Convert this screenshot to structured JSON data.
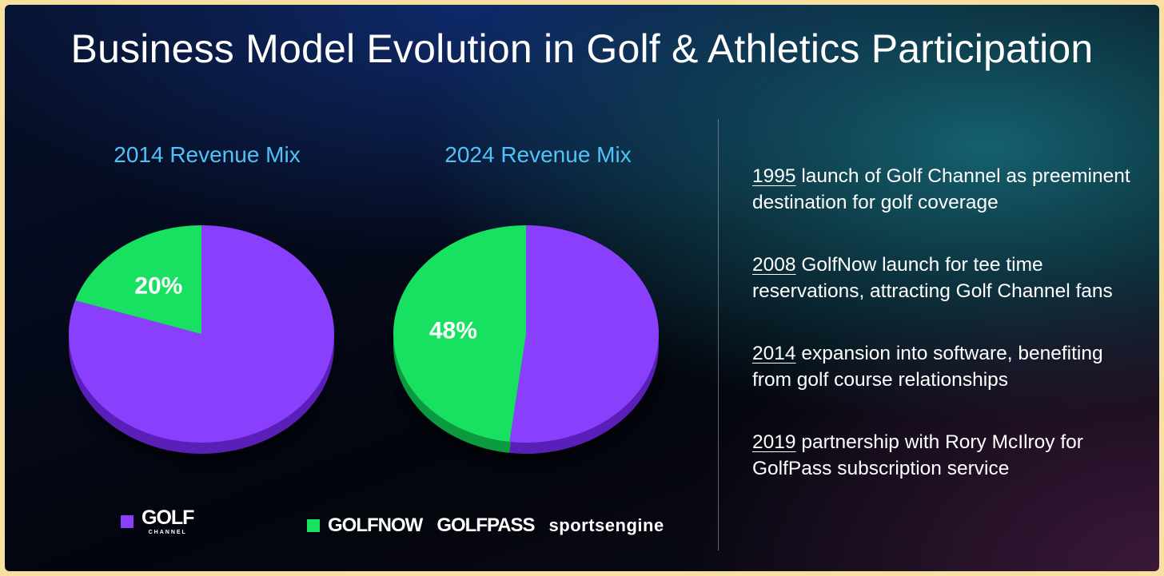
{
  "title": "Business Model Evolution in Golf & Athletics Participation",
  "chart_data": [
    {
      "type": "pie",
      "title": "2014 Revenue Mix",
      "series": [
        {
          "name": "Golf Channel",
          "value": 80
        },
        {
          "name": "GolfNow / GolfPass / SportsEngine",
          "value": 20
        }
      ],
      "labels_shown": [
        "",
        "20%"
      ]
    },
    {
      "type": "pie",
      "title": "2024 Revenue Mix",
      "series": [
        {
          "name": "Golf Channel",
          "value": 52
        },
        {
          "name": "GolfNow / GolfPass / SportsEngine",
          "value": 48
        }
      ],
      "labels_shown": [
        "",
        "48%"
      ]
    }
  ],
  "colors": {
    "media": "#8a3ffc",
    "digital": "#18e060"
  },
  "legend": {
    "media": {
      "logo_main": "GOLF",
      "logo_sub": "CHANNEL"
    },
    "digital": {
      "brands": [
        "GOLFNOW",
        "GOLFPASS",
        "sportsengine"
      ]
    }
  },
  "timeline": [
    {
      "year": "1995",
      "text": " launch of Golf Channel as preeminent destination for golf coverage"
    },
    {
      "year": "2008",
      "text": " GolfNow launch for tee time reservations, attracting Golf Channel fans"
    },
    {
      "year": "2014",
      "text": " expansion into software, benefiting from golf course relationships"
    },
    {
      "year": "2019",
      "text": " partnership with Rory McIlroy for GolfPass subscription service"
    }
  ]
}
